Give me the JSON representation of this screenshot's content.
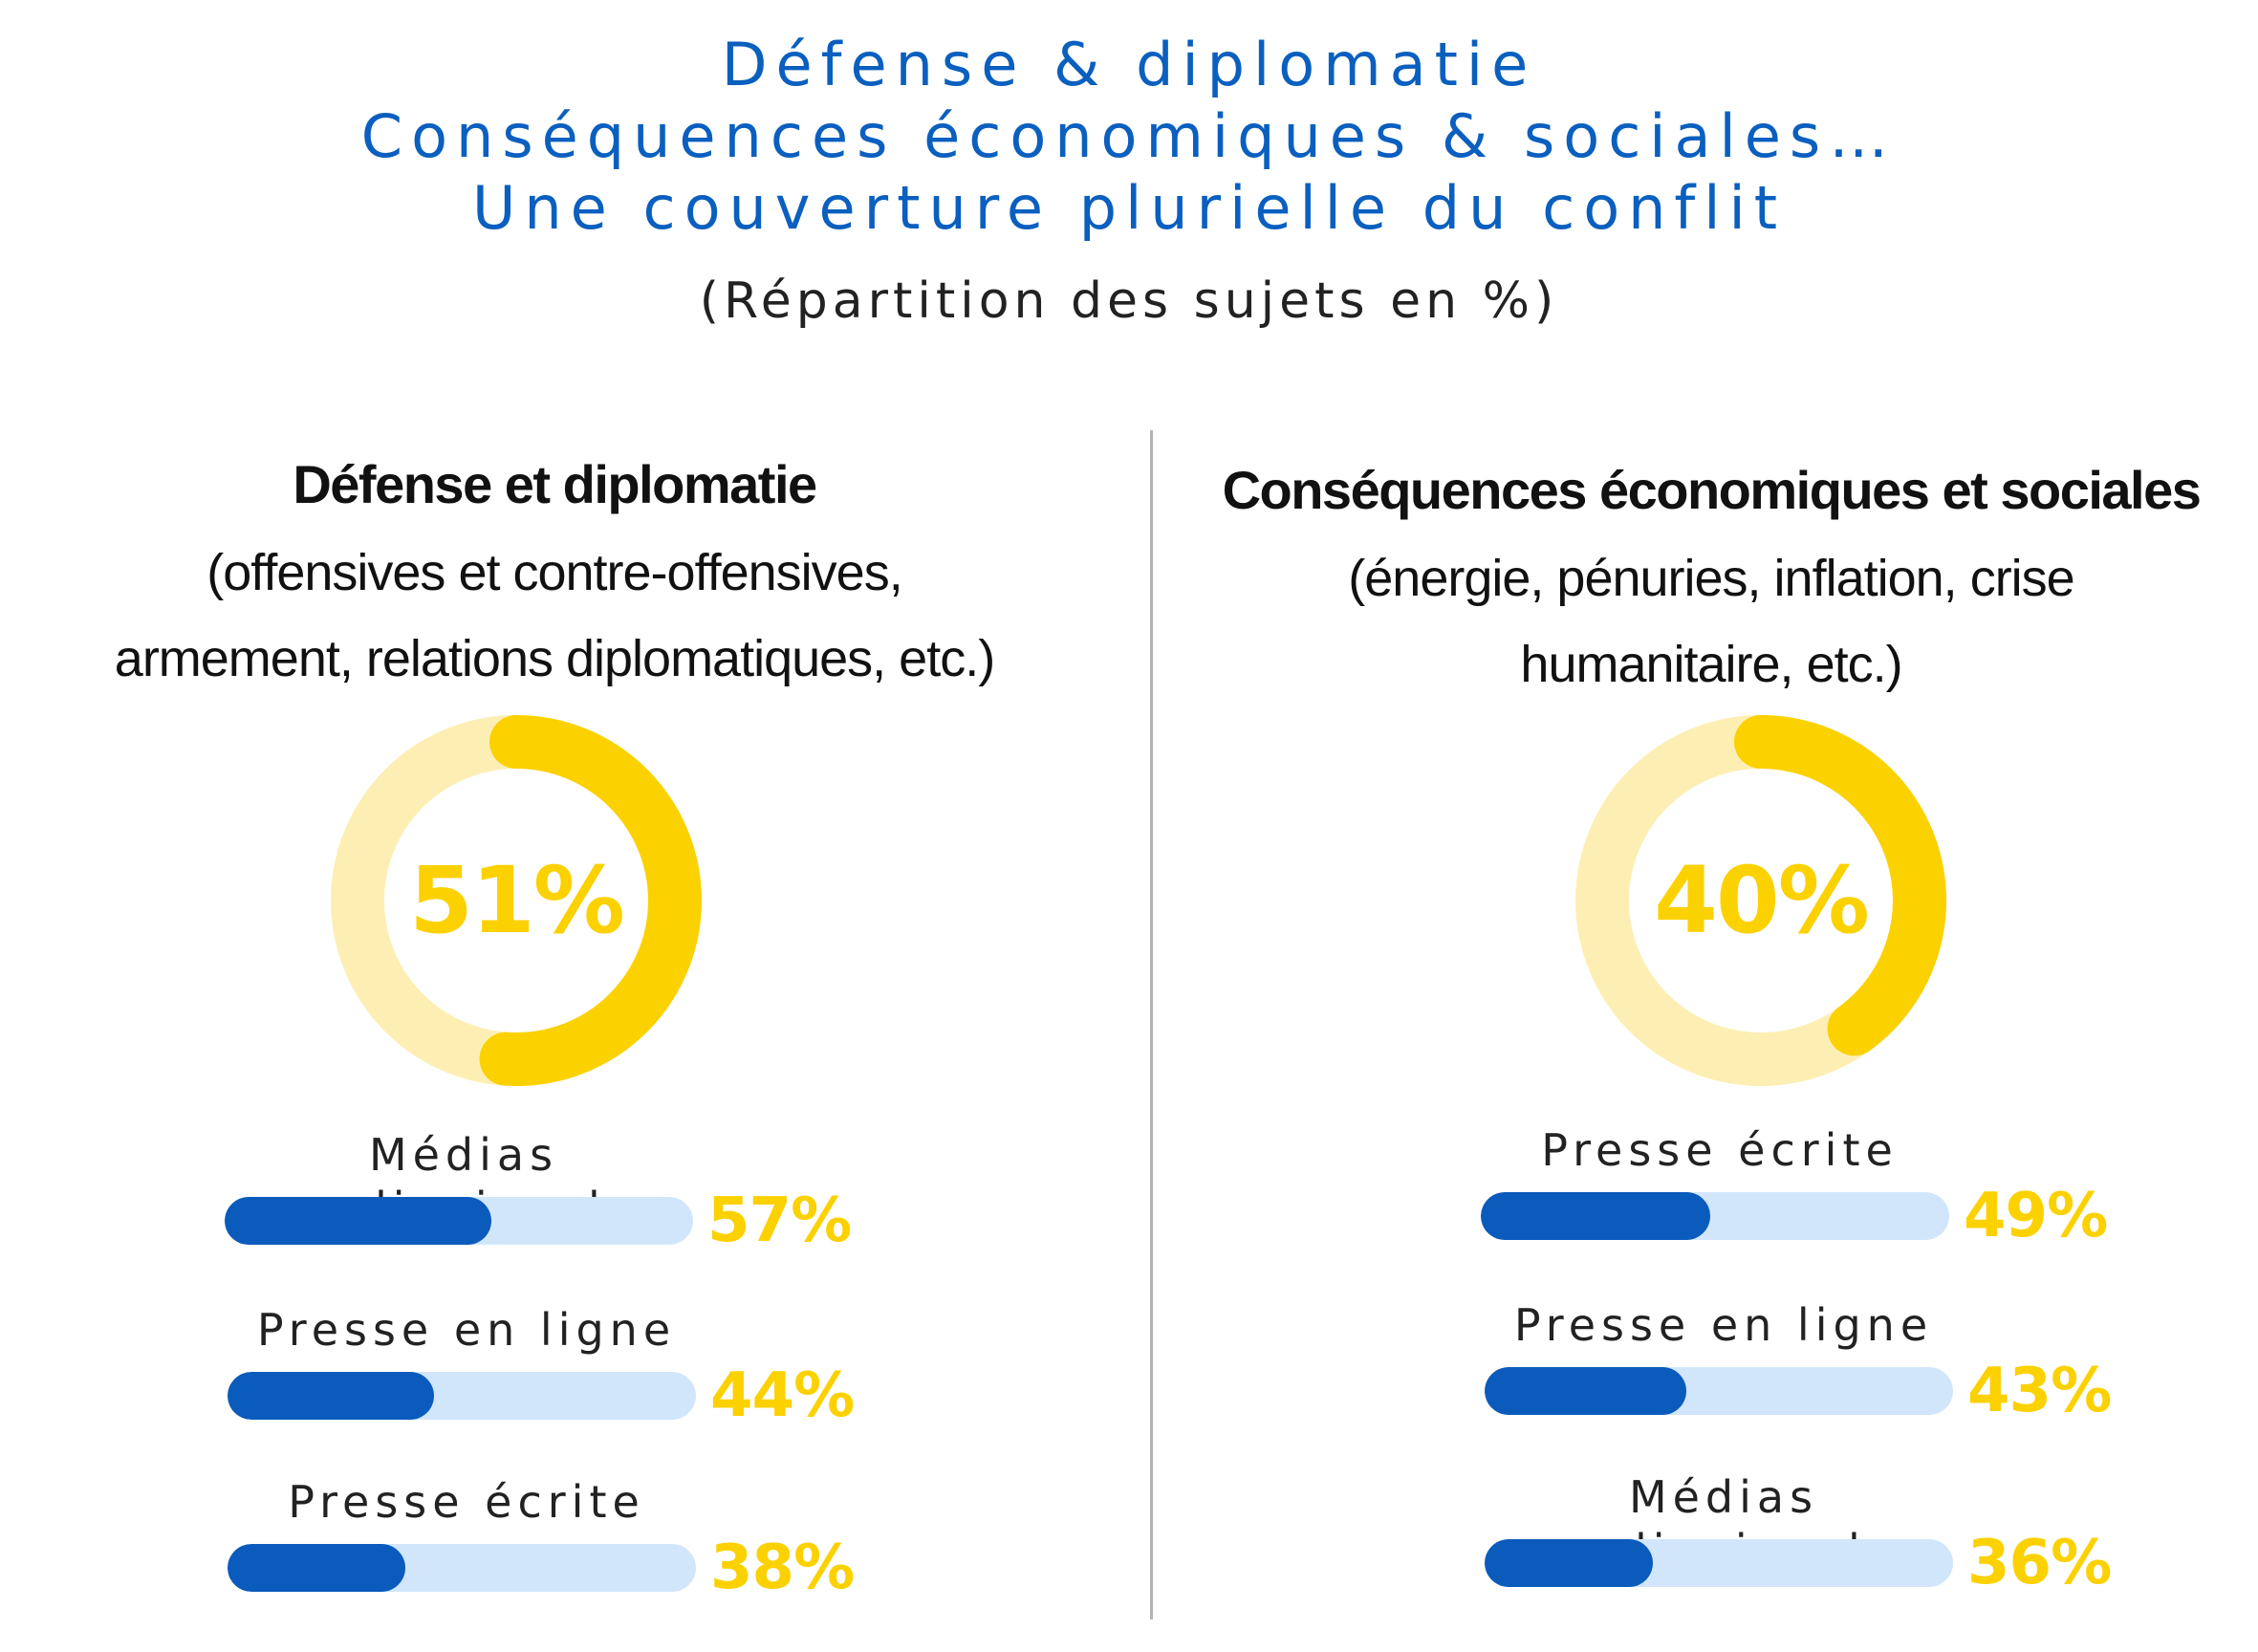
{
  "header": {
    "title_lines": [
      "Défense & diplomatie",
      "Conséquences économiques & sociales…",
      "Une couverture plurielle du conflit"
    ],
    "subtitle": "(Répartition des sujets en %)"
  },
  "colors": {
    "title_blue": "#0a5fbf",
    "bar_fill": "#0a5bbc",
    "bar_track": "#d2e6fb",
    "donut_arc": "#fcd100",
    "donut_track": "#fdefb4",
    "value_yellow": "#fcd100"
  },
  "panels": [
    {
      "title": "Défense et diplomatie",
      "desc_lines": [
        "(offensives et contre-offensives,",
        "armement, relations diplomatiques, etc.)"
      ],
      "donut_label": "51%",
      "bars": [
        {
          "label": "Médias audiovisuels",
          "value_label": "57%"
        },
        {
          "label": "Presse en ligne",
          "value_label": "44%"
        },
        {
          "label": "Presse écrite",
          "value_label": "38%"
        }
      ]
    },
    {
      "title": "Conséquences économiques et sociales",
      "desc_lines": [
        "(énergie, pénuries, inflation, crise",
        "humanitaire, etc.)"
      ],
      "donut_label": "40%",
      "bars": [
        {
          "label": "Presse écrite",
          "value_label": "49%"
        },
        {
          "label": "Presse en ligne",
          "value_label": "43%"
        },
        {
          "label": "Médias audiovisuels",
          "value_label": "36%"
        }
      ]
    }
  ],
  "chart_data": [
    {
      "type": "pie",
      "title": "Défense et diplomatie",
      "values": [
        51
      ],
      "unit": "%"
    },
    {
      "type": "bar",
      "title": "Défense et diplomatie",
      "categories": [
        "Médias audiovisuels",
        "Presse en ligne",
        "Presse écrite"
      ],
      "values": [
        57,
        44,
        38
      ],
      "unit": "%",
      "ylim": [
        0,
        100
      ]
    },
    {
      "type": "pie",
      "title": "Conséquences économiques et sociales",
      "values": [
        40
      ],
      "unit": "%"
    },
    {
      "type": "bar",
      "title": "Conséquences économiques et sociales",
      "categories": [
        "Presse écrite",
        "Presse en ligne",
        "Médias audiovisuels"
      ],
      "values": [
        49,
        43,
        36
      ],
      "unit": "%",
      "ylim": [
        0,
        100
      ]
    }
  ]
}
